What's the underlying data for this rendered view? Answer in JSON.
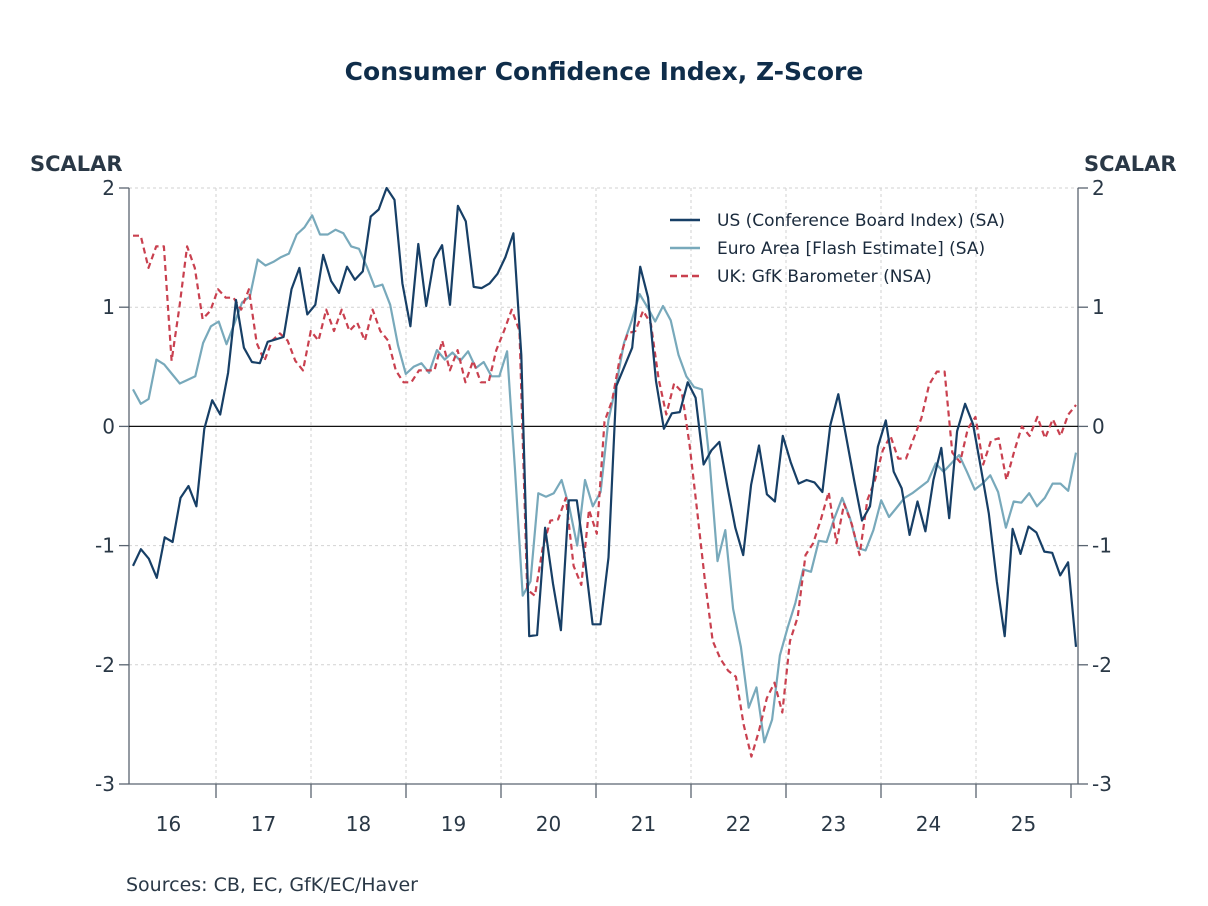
{
  "chart_data": {
    "type": "line",
    "title": "Consumer Confidence Index, Z-Score",
    "ylabel_left": "SCALAR",
    "ylabel_right": "SCALAR",
    "xlabel": "",
    "ylim": [
      -3,
      2
    ],
    "yticks": [
      2,
      1,
      0,
      -1,
      -2,
      -3
    ],
    "ytick_labels": [
      "2",
      "1",
      "0",
      "-1",
      "-2",
      "-3"
    ],
    "xtick_labels": [
      "16",
      "17",
      "18",
      "19",
      "20",
      "21",
      "22",
      "23",
      "24",
      "25"
    ],
    "x_frequency": "monthly",
    "x_start": "2016-02",
    "grid": true,
    "legend_position": "top-right",
    "source": "Sources:  CB, EC, GfK/EC/Haver",
    "series": [
      {
        "name": "US (Conference Board Index) (SA)",
        "color": "#173f66",
        "style": "solid",
        "values": [
          -1.17,
          -1.03,
          -1.11,
          -1.27,
          -0.93,
          -0.97,
          -0.6,
          -0.5,
          -0.67,
          -0.02,
          0.22,
          0.1,
          0.45,
          1.06,
          0.66,
          0.54,
          0.53,
          0.71,
          0.73,
          0.75,
          1.15,
          1.33,
          0.94,
          1.02,
          1.44,
          1.22,
          1.12,
          1.34,
          1.23,
          1.3,
          1.76,
          1.82,
          2.0,
          1.9,
          1.2,
          0.84,
          1.53,
          1.01,
          1.4,
          1.52,
          1.02,
          1.85,
          1.72,
          1.17,
          1.16,
          1.2,
          1.28,
          1.42,
          1.62,
          0.6,
          -1.76,
          -1.75,
          -0.85,
          -1.32,
          -1.71,
          -0.62,
          -0.62,
          -1.1,
          -1.66,
          -1.66,
          -1.1,
          0.34,
          0.5,
          0.66,
          1.34,
          1.08,
          0.38,
          -0.02,
          0.11,
          0.12,
          0.37,
          0.24,
          -0.32,
          -0.2,
          -0.13,
          -0.5,
          -0.85,
          -1.08,
          -0.49,
          -0.16,
          -0.57,
          -0.63,
          -0.08,
          -0.3,
          -0.48,
          -0.45,
          -0.47,
          -0.55,
          0.01,
          0.27,
          -0.09,
          -0.45,
          -0.79,
          -0.67,
          -0.17,
          0.05,
          -0.38,
          -0.52,
          -0.91,
          -0.63,
          -0.88,
          -0.45,
          -0.18,
          -0.77,
          -0.04,
          0.19,
          0.02,
          -0.35,
          -0.73,
          -1.3,
          -1.76,
          -0.86,
          -1.07,
          -0.84,
          -0.89,
          -1.05,
          -1.06,
          -1.25,
          -1.14,
          -1.85
        ]
      },
      {
        "name": "Euro Area [Flash Estimate] (SA)",
        "color": "#78a9bb",
        "style": "solid",
        "values": [
          0.31,
          0.19,
          0.23,
          0.56,
          0.52,
          0.44,
          0.36,
          0.39,
          0.42,
          0.7,
          0.84,
          0.88,
          0.69,
          0.86,
          1.04,
          1.09,
          1.4,
          1.35,
          1.38,
          1.42,
          1.45,
          1.61,
          1.67,
          1.77,
          1.61,
          1.61,
          1.65,
          1.62,
          1.51,
          1.49,
          1.34,
          1.17,
          1.19,
          1.02,
          0.68,
          0.44,
          0.5,
          0.53,
          0.45,
          0.64,
          0.56,
          0.62,
          0.55,
          0.63,
          0.49,
          0.54,
          0.42,
          0.42,
          0.63,
          -0.35,
          -1.42,
          -1.3,
          -0.56,
          -0.59,
          -0.56,
          -0.45,
          -0.68,
          -1.0,
          -0.45,
          -0.67,
          -0.55,
          0.05,
          0.35,
          0.7,
          0.89,
          1.11,
          1.0,
          0.88,
          1.01,
          0.89,
          0.6,
          0.42,
          0.33,
          0.31,
          -0.3,
          -1.13,
          -0.87,
          -1.53,
          -1.85,
          -2.36,
          -2.19,
          -2.65,
          -2.46,
          -1.92,
          -1.69,
          -1.48,
          -1.2,
          -1.22,
          -0.96,
          -0.97,
          -0.77,
          -0.6,
          -0.77,
          -1.02,
          -1.04,
          -0.87,
          -0.62,
          -0.76,
          -0.68,
          -0.6,
          -0.56,
          -0.51,
          -0.46,
          -0.31,
          -0.38,
          -0.31,
          -0.24,
          -0.38,
          -0.53,
          -0.48,
          -0.41,
          -0.55,
          -0.85,
          -0.63,
          -0.64,
          -0.56,
          -0.67,
          -0.6,
          -0.48,
          -0.48,
          -0.54,
          -0.22
        ]
      },
      {
        "name": "UK: GfK Barometer (NSA)",
        "color": "#c9404f",
        "style": "dashed",
        "values": [
          1.6,
          1.6,
          1.33,
          1.51,
          1.51,
          0.55,
          1.0,
          1.51,
          1.33,
          0.9,
          0.97,
          1.15,
          1.08,
          1.08,
          0.98,
          1.15,
          0.7,
          0.55,
          0.72,
          0.78,
          0.72,
          0.55,
          0.47,
          0.8,
          0.72,
          0.98,
          0.8,
          0.98,
          0.8,
          0.87,
          0.72,
          0.98,
          0.8,
          0.72,
          0.47,
          0.37,
          0.37,
          0.47,
          0.47,
          0.47,
          0.72,
          0.47,
          0.64,
          0.37,
          0.55,
          0.37,
          0.37,
          0.64,
          0.8,
          0.98,
          0.8,
          -1.37,
          -1.42,
          -1.02,
          -0.79,
          -0.78,
          -0.6,
          -1.17,
          -1.33,
          -0.7,
          -0.9,
          0.04,
          0.22,
          0.58,
          0.78,
          0.8,
          0.97,
          0.86,
          0.4,
          0.1,
          0.36,
          0.29,
          -0.15,
          -0.72,
          -1.3,
          -1.8,
          -1.95,
          -2.05,
          -2.1,
          -2.5,
          -2.77,
          -2.55,
          -2.28,
          -2.15,
          -2.4,
          -1.8,
          -1.6,
          -1.08,
          -0.98,
          -0.78,
          -0.55,
          -0.98,
          -0.65,
          -0.82,
          -1.08,
          -0.62,
          -0.45,
          -0.2,
          -0.08,
          -0.27,
          -0.27,
          -0.1,
          0.07,
          0.35,
          0.46,
          0.46,
          -0.22,
          -0.3,
          -0.02,
          0.08,
          -0.32,
          -0.12,
          -0.1,
          -0.45,
          -0.21,
          0.0,
          -0.08,
          0.08,
          -0.1,
          0.06,
          -0.08,
          0.1,
          0.18
        ]
      }
    ]
  }
}
